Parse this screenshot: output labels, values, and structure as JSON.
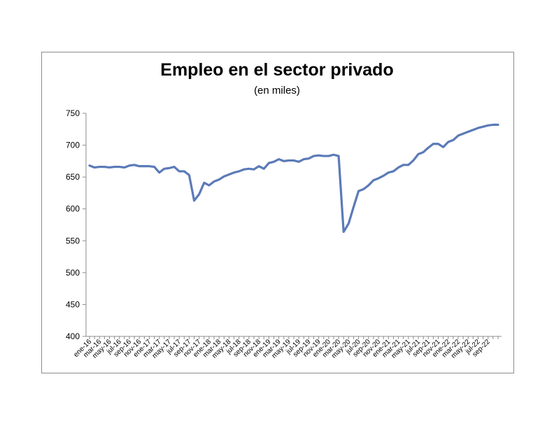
{
  "chart_data": {
    "type": "line",
    "title": "Empleo en el sector privado",
    "subtitle": "(en miles)",
    "xlabel": "",
    "ylabel": "",
    "ylim": [
      400,
      750
    ],
    "yticks": [
      400,
      450,
      500,
      550,
      600,
      650,
      700,
      750
    ],
    "grid": false,
    "legend": "none",
    "line_color": "#5b7ab8",
    "x_tick_labels": [
      "ene-16",
      "mar-16",
      "may-16",
      "jul-16",
      "sep-16",
      "nov-16",
      "ene-17",
      "mar-17",
      "may-17",
      "jul-17",
      "sep-17",
      "nov-17",
      "ene-18",
      "mar-18",
      "may-18",
      "jul-18",
      "sep-18",
      "nov-18",
      "ene-19",
      "mar-19",
      "may-19",
      "jul-19",
      "sep-19",
      "nov-19",
      "ene-20",
      "mar-20",
      "may-20",
      "jul-20",
      "sep-20",
      "nov-20",
      "ene-21",
      "mar-21",
      "may-21",
      "jul-21",
      "sep-21",
      "nov-21",
      "ene-22",
      "mar-22",
      "may-22",
      "jul-22",
      "sep-22"
    ],
    "series": [
      {
        "values": [
          668,
          665,
          666,
          666,
          665,
          666,
          666,
          665,
          668,
          669,
          667,
          667,
          667,
          666,
          657,
          663,
          664,
          666,
          659,
          659,
          653,
          613,
          623,
          641,
          637,
          643,
          646,
          651,
          654,
          657,
          659,
          662,
          663,
          662,
          667,
          663,
          672,
          674,
          678,
          675,
          676,
          676,
          674,
          678,
          679,
          683,
          684,
          683,
          683,
          685,
          683,
          564,
          577,
          603,
          628,
          631,
          637,
          645,
          648,
          652,
          657,
          659,
          665,
          669,
          669,
          676,
          686,
          689,
          696,
          702,
          702,
          697,
          705,
          708,
          715,
          718,
          721,
          724,
          727,
          729,
          731,
          732,
          732
        ]
      }
    ]
  }
}
